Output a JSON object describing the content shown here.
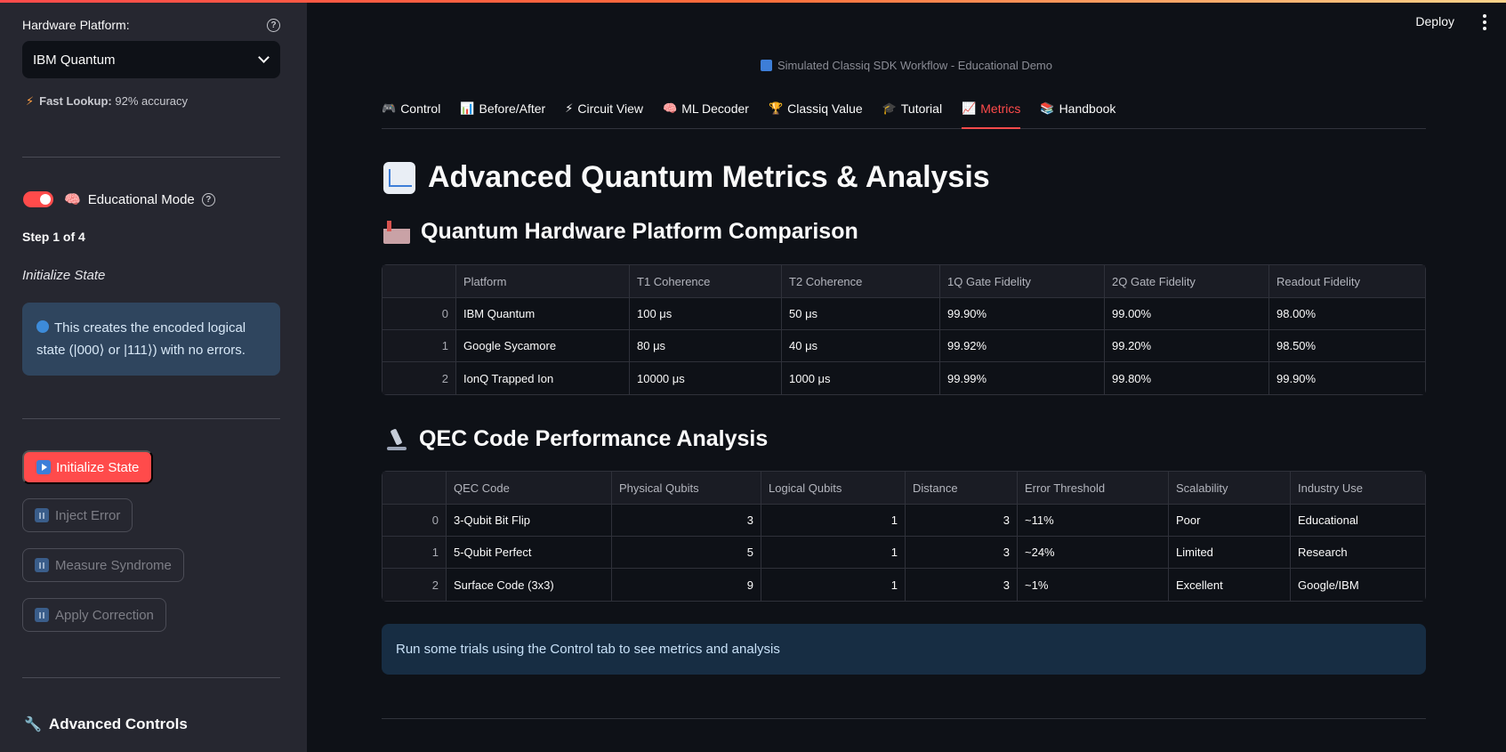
{
  "sidebar": {
    "platform_label": "Hardware Platform:",
    "platform_selected": "IBM Quantum",
    "fast_lookup_label": "Fast Lookup:",
    "fast_lookup_value": "92% accuracy",
    "educational_mode_label": "Educational Mode",
    "educational_mode_on": true,
    "step_label": "Step 1 of 4",
    "step_title": "Initialize State",
    "info_text": "This creates the encoded logical state (|000⟩ or |111⟩) with no errors.",
    "buttons": [
      {
        "label": "Initialize State",
        "enabled": true
      },
      {
        "label": "Inject Error",
        "enabled": false
      },
      {
        "label": "Measure Syndrome",
        "enabled": false
      },
      {
        "label": "Apply Correction",
        "enabled": false
      }
    ],
    "advanced_controls_label": "Advanced Controls"
  },
  "header": {
    "deploy_label": "Deploy",
    "subtitle": "Simulated Classiq SDK Workflow - Educational Demo"
  },
  "tabs": [
    {
      "label": "Control",
      "icon": "gamepad-icon"
    },
    {
      "label": "Before/After",
      "icon": "bar-chart-icon"
    },
    {
      "label": "Circuit View",
      "icon": "lightning-icon"
    },
    {
      "label": "ML Decoder",
      "icon": "brain-icon"
    },
    {
      "label": "Classiq Value",
      "icon": "trophy-icon"
    },
    {
      "label": "Tutorial",
      "icon": "graduation-cap-icon"
    },
    {
      "label": "Metrics",
      "icon": "chart-icon",
      "active": true
    },
    {
      "label": "Handbook",
      "icon": "books-icon"
    }
  ],
  "main": {
    "title": "Advanced Quantum Metrics & Analysis",
    "hardware_section_title": "Quantum Hardware Platform Comparison",
    "hardware_table": {
      "headers": [
        "",
        "Platform",
        "T1 Coherence",
        "T2 Coherence",
        "1Q Gate Fidelity",
        "2Q Gate Fidelity",
        "Readout Fidelity"
      ],
      "rows": [
        [
          "0",
          "IBM Quantum",
          "100 μs",
          "50 μs",
          "99.90%",
          "99.00%",
          "98.00%"
        ],
        [
          "1",
          "Google Sycamore",
          "80 μs",
          "40 μs",
          "99.92%",
          "99.20%",
          "98.50%"
        ],
        [
          "2",
          "IonQ Trapped Ion",
          "10000 μs",
          "1000 μs",
          "99.99%",
          "99.80%",
          "99.90%"
        ]
      ]
    },
    "qec_section_title": "QEC Code Performance Analysis",
    "qec_table": {
      "headers": [
        "",
        "QEC Code",
        "Physical Qubits",
        "Logical Qubits",
        "Distance",
        "Error Threshold",
        "Scalability",
        "Industry Use"
      ],
      "rows": [
        [
          "0",
          "3-Qubit Bit Flip",
          "3",
          "1",
          "3",
          "~11%",
          "Poor",
          "Educational"
        ],
        [
          "1",
          "5-Qubit Perfect",
          "5",
          "1",
          "3",
          "~24%",
          "Limited",
          "Research"
        ],
        [
          "2",
          "Surface Code (3x3)",
          "9",
          "1",
          "3",
          "~1%",
          "Excellent",
          "Google/IBM"
        ]
      ]
    },
    "run_message": "Run some trials using the Control tab to see metrics and analysis"
  }
}
